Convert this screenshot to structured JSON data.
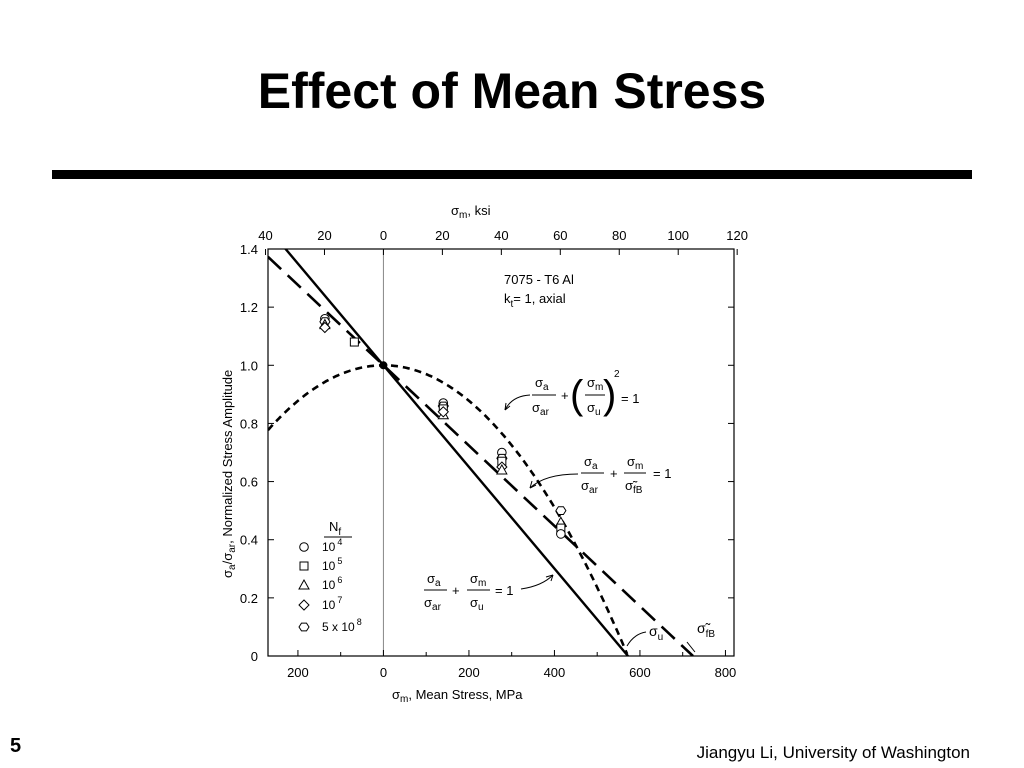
{
  "slide": {
    "title": "Effect of Mean Stress",
    "page_number": "5",
    "footer": "Jiangyu Li, University of Washington"
  },
  "colors": {
    "line": "#000000",
    "axis_zero": "#888888",
    "background": "#ffffff"
  },
  "chart_data": {
    "type": "line",
    "title": "",
    "material": [
      "7075 -  T6  Al",
      "k",
      "t",
      "= 1, axial"
    ],
    "xlabel": {
      "sigma": "σ",
      "sub": "m",
      "text": ", Mean  Stress,   MPa"
    },
    "ylabel": {
      "part1": "σ",
      "sub1": "a",
      "part2": "/σ",
      "sub2": "ar",
      "part3": ", Normalized Stress    Amplitude"
    },
    "top_axis_label": {
      "sigma": "σ",
      "sub": "m",
      "text": ", ksi"
    },
    "xlim": [
      -270,
      820
    ],
    "ylim": [
      0,
      1.4
    ],
    "x_ticks": [
      -200,
      0,
      200,
      400,
      600,
      800
    ],
    "x_tick_labels": [
      "200",
      "0",
      "200",
      "400",
      "600",
      "800"
    ],
    "y_ticks": [
      0,
      0.2,
      0.4,
      0.6,
      0.8,
      1.0,
      1.2,
      1.4
    ],
    "y_tick_labels": [
      "0",
      "0.2",
      "0.4",
      "0.6",
      "0.8",
      "1.0",
      "1.2",
      "1.4"
    ],
    "top_ticks_ksi": [
      -40,
      -20,
      0,
      20,
      40,
      60,
      80,
      100,
      120
    ],
    "top_tick_labels": [
      "40",
      "20",
      "0",
      "20",
      "40",
      "60",
      "80",
      "100",
      "120"
    ],
    "sigma_u": 572,
    "sigma_fB": 724,
    "series": [
      {
        "curve": "goodman",
        "style": "solid",
        "x": [
          -270,
          572
        ],
        "y": [
          1.472,
          0
        ]
      },
      {
        "curve": "morrow",
        "style": "long-dash",
        "x": [
          -270,
          724
        ],
        "y": [
          1.373,
          0
        ]
      },
      {
        "curve": "gerber",
        "style": "short-dash",
        "x": [
          -270,
          572
        ],
        "function": "1-(x/572)^2"
      }
    ],
    "points": [
      {
        "x": -137,
        "y": 1.16,
        "marker": "circle"
      },
      {
        "x": -137,
        "y": 1.15,
        "marker": "hexagon"
      },
      {
        "x": -137,
        "y": 1.14,
        "marker": "triangle"
      },
      {
        "x": -137,
        "y": 1.13,
        "marker": "diamond"
      },
      {
        "x": -68,
        "y": 1.08,
        "marker": "square"
      },
      {
        "x": 140,
        "y": 0.87,
        "marker": "circle"
      },
      {
        "x": 140,
        "y": 0.86,
        "marker": "hexagon"
      },
      {
        "x": 140,
        "y": 0.85,
        "marker": "square"
      },
      {
        "x": 140,
        "y": 0.83,
        "marker": "triangle"
      },
      {
        "x": 140,
        "y": 0.84,
        "marker": "diamond"
      },
      {
        "x": 277,
        "y": 0.7,
        "marker": "circle"
      },
      {
        "x": 277,
        "y": 0.68,
        "marker": "hexagon"
      },
      {
        "x": 277,
        "y": 0.67,
        "marker": "square"
      },
      {
        "x": 277,
        "y": 0.65,
        "marker": "diamond"
      },
      {
        "x": 277,
        "y": 0.64,
        "marker": "triangle"
      },
      {
        "x": 415,
        "y": 0.5,
        "marker": "hexagon"
      },
      {
        "x": 415,
        "y": 0.46,
        "marker": "triangle"
      },
      {
        "x": 415,
        "y": 0.44,
        "marker": "square"
      },
      {
        "x": 415,
        "y": 0.42,
        "marker": "circle"
      },
      {
        "x": 0,
        "y": 1.0,
        "marker": "dot"
      }
    ],
    "legend": {
      "header": [
        "N",
        "f"
      ],
      "entries": [
        {
          "marker": "circle",
          "text": "10",
          "sup": "4"
        },
        {
          "marker": "square",
          "text": "10",
          "sup": "5"
        },
        {
          "marker": "triangle",
          "text": "10",
          "sup": "6"
        },
        {
          "marker": "diamond",
          "text": "10",
          "sup": "7"
        },
        {
          "marker": "hexagon",
          "text": "5 x 10",
          "sup": "8"
        }
      ]
    },
    "annotations": {
      "gerber": {
        "n1": "σ",
        "s1": "a",
        "d1": "σ",
        "ds1": "ar",
        "plus": "+",
        "n2": "σ",
        "s2": "m",
        "d2": "σ",
        "ds2": "u",
        "exp": "2",
        "eq": "= 1"
      },
      "morrow": {
        "n1": "σ",
        "s1": "a",
        "d1": "σ",
        "ds1": "ar",
        "plus": "+",
        "n2": "σ",
        "s2": "m",
        "d2": "σ̃",
        "ds2": "fB",
        "eq": "= 1"
      },
      "goodman": {
        "n1": "σ",
        "s1": "a",
        "d1": "σ",
        "ds1": "ar",
        "plus": "+",
        "n2": "σ",
        "s2": "m",
        "d2": "σ",
        "ds2": "u",
        "eq": "= 1"
      },
      "sigma_u_label": {
        "main": "σ",
        "sub": "u"
      },
      "sigma_fB_label": {
        "main": "σ̃",
        "sub": "fB"
      }
    }
  }
}
